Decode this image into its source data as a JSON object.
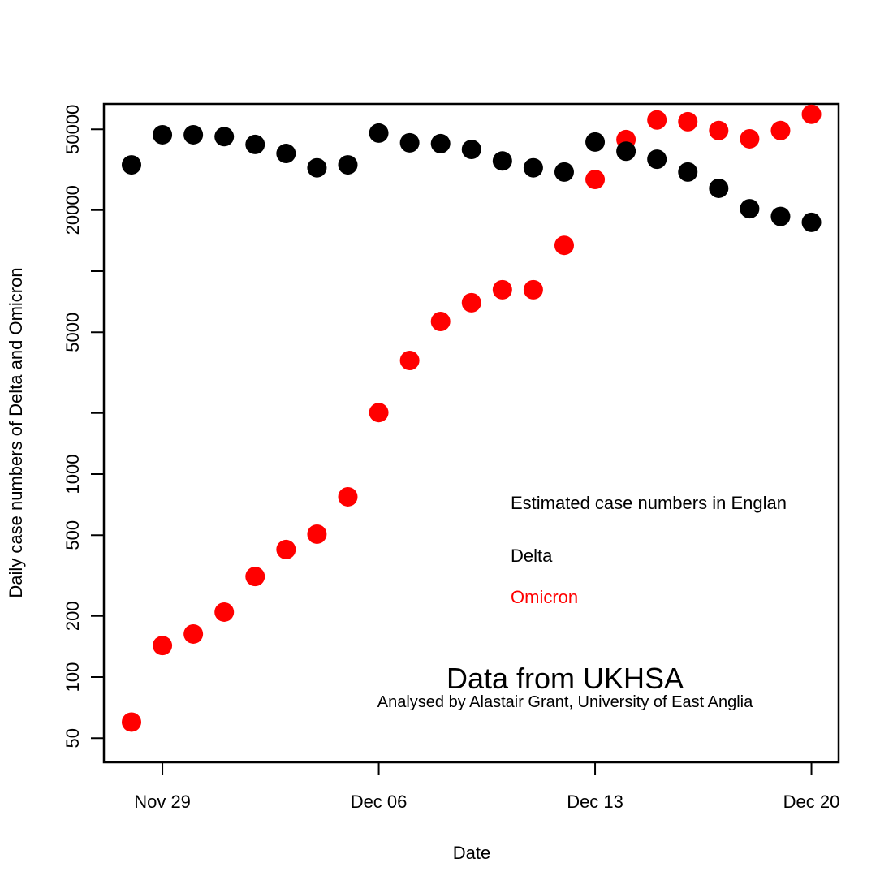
{
  "chart_data": {
    "type": "scatter",
    "title": "",
    "xlabel": "Date",
    "ylabel": "Daily case numbers of Delta and Omicron",
    "y_scale": "log",
    "ylim": [
      40,
      70000
    ],
    "xlim": [
      "Nov 27",
      "Dec 20"
    ],
    "grid": false,
    "x_ticks": [
      {
        "date": "Nov 29",
        "day": 1,
        "label": "Nov 29"
      },
      {
        "date": "Dec 06",
        "day": 8,
        "label": "Dec 06"
      },
      {
        "date": "Dec 13",
        "day": 15,
        "label": "Dec 13"
      },
      {
        "date": "Dec 20",
        "day": 22,
        "label": "Dec 20"
      }
    ],
    "y_ticks": [
      {
        "value": 50,
        "label": "50"
      },
      {
        "value": 100,
        "label": "100"
      },
      {
        "value": 200,
        "label": "200"
      },
      {
        "value": 500,
        "label": "500"
      },
      {
        "value": 1000,
        "label": "1000"
      },
      {
        "value": 2000,
        "label": ""
      },
      {
        "value": 5000,
        "label": "5000"
      },
      {
        "value": 10000,
        "label": ""
      },
      {
        "value": 20000,
        "label": "20000"
      },
      {
        "value": 50000,
        "label": "50000"
      }
    ],
    "x": [
      "Nov 28",
      "Nov 29",
      "Nov 30",
      "Dec 01",
      "Dec 02",
      "Dec 03",
      "Dec 04",
      "Dec 05",
      "Dec 06",
      "Dec 07",
      "Dec 08",
      "Dec 09",
      "Dec 10",
      "Dec 11",
      "Dec 12",
      "Dec 13",
      "Dec 14",
      "Dec 15",
      "Dec 16",
      "Dec 17",
      "Dec 18",
      "Dec 19",
      "Dec 20"
    ],
    "series": [
      {
        "name": "Delta",
        "color": "#000000",
        "values": [
          33400,
          47000,
          47000,
          46000,
          42100,
          38000,
          32300,
          33400,
          47900,
          42900,
          42500,
          39800,
          34900,
          32300,
          30800,
          43300,
          39000,
          35600,
          30800,
          25600,
          20300,
          18600,
          17400
        ]
      },
      {
        "name": "Omicron",
        "color": "#ff0000",
        "values": [
          60,
          143,
          163,
          209,
          313,
          425,
          506,
          773,
          2010,
          3630,
          5650,
          6990,
          8100,
          8100,
          13400,
          28300,
          44500,
          55600,
          54500,
          49300,
          44900,
          49300,
          59300
        ]
      }
    ],
    "legend": {
      "placement": "middle-right",
      "title": "Estimated case numbers in Englan",
      "entries": [
        {
          "label": "Delta",
          "color": "#000000"
        },
        {
          "label": "Omicron",
          "color": "#ff0000"
        }
      ]
    },
    "annotations": {
      "source": "Data from UKHSA",
      "credit": "Analysed by Alastair Grant, University of East Anglia"
    }
  }
}
